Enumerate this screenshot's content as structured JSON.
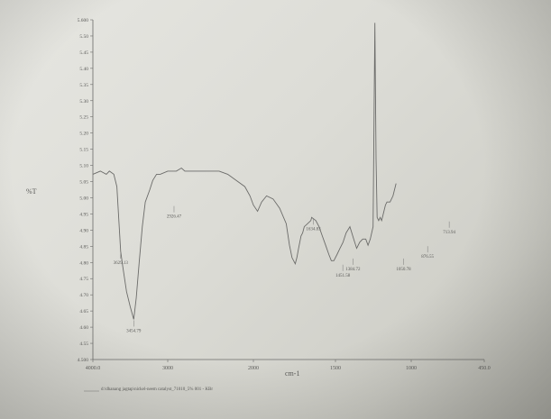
{
  "chart_data": {
    "type": "line",
    "ylabel": "%T",
    "xlabel": "cm-1",
    "xlim": [
      4000.0,
      450.0
    ],
    "ylim": [
      4.5,
      5.6
    ],
    "x_ticks": [
      "4000.0",
      "3000",
      "2000",
      "1500",
      "1000",
      "450.0"
    ],
    "y_ticks": [
      "4.500",
      "4.55",
      "4.60",
      "4.65",
      "4.70",
      "4.75",
      "4.80",
      "4.85",
      "4.90",
      "4.95",
      "5.00",
      "5.05",
      "5.10",
      "5.15",
      "5.20",
      "5.25",
      "5.30",
      "5.35",
      "5.40",
      "5.45",
      "5.50",
      "5.600"
    ],
    "series": [
      {
        "values": [
          [
            4000.0,
            5.1
          ],
          [
            3900,
            5.11
          ],
          [
            3820,
            5.1
          ],
          [
            3780,
            5.11
          ],
          [
            3720,
            5.1
          ],
          [
            3680,
            5.06
          ],
          [
            3629.13,
            4.85
          ],
          [
            3600,
            4.8
          ],
          [
            3550,
            4.72
          ],
          [
            3500,
            4.67
          ],
          [
            3454.79,
            4.63
          ],
          [
            3420,
            4.7
          ],
          [
            3380,
            4.82
          ],
          [
            3340,
            4.93
          ],
          [
            3300,
            5.01
          ],
          [
            3240,
            5.05
          ],
          [
            3200,
            5.08
          ],
          [
            3150,
            5.1
          ],
          [
            3100,
            5.1
          ],
          [
            3000,
            5.11
          ],
          [
            2900,
            5.11
          ],
          [
            2840,
            5.12
          ],
          [
            2800,
            5.11
          ],
          [
            2700,
            5.11
          ],
          [
            2600,
            5.11
          ],
          [
            2500,
            5.11
          ],
          [
            2400,
            5.11
          ],
          [
            2300,
            5.1
          ],
          [
            2200,
            5.08
          ],
          [
            2100,
            5.06
          ],
          [
            2040,
            5.03
          ],
          [
            2000,
            5.0
          ],
          [
            1975,
            4.98
          ],
          [
            1950,
            5.01
          ],
          [
            1920,
            5.03
          ],
          [
            1880,
            5.02
          ],
          [
            1840,
            4.99
          ],
          [
            1800,
            4.94
          ],
          [
            1780,
            4.87
          ],
          [
            1765,
            4.83
          ],
          [
            1745,
            4.81
          ],
          [
            1735,
            4.83
          ],
          [
            1725,
            4.86
          ],
          [
            1710,
            4.9
          ],
          [
            1700,
            4.91
          ],
          [
            1690,
            4.93
          ],
          [
            1670,
            4.94
          ],
          [
            1650,
            4.95
          ],
          [
            1645,
            4.96
          ],
          [
            1620,
            4.95
          ],
          [
            1600,
            4.93
          ],
          [
            1580,
            4.9
          ],
          [
            1560,
            4.87
          ],
          [
            1540,
            4.84
          ],
          [
            1525,
            4.82
          ],
          [
            1510,
            4.82
          ],
          [
            1490,
            4.84
          ],
          [
            1470,
            4.86
          ],
          [
            1450,
            4.88
          ],
          [
            1430,
            4.91
          ],
          [
            1405,
            4.93
          ],
          [
            1380,
            4.89
          ],
          [
            1360,
            4.86
          ],
          [
            1340,
            4.88
          ],
          [
            1320,
            4.89
          ],
          [
            1300,
            4.89
          ],
          [
            1285,
            4.87
          ],
          [
            1270,
            4.89
          ],
          [
            1252,
            4.93
          ],
          [
            1240,
            5.59
          ],
          [
            1232,
            5.15
          ],
          [
            1225,
            4.96
          ],
          [
            1215,
            4.95
          ],
          [
            1205,
            4.96
          ],
          [
            1195,
            4.95
          ],
          [
            1185,
            4.97
          ],
          [
            1170,
            5.0
          ],
          [
            1160,
            5.01
          ],
          [
            1140,
            5.01
          ],
          [
            1120,
            5.03
          ],
          [
            1100,
            5.07
          ]
        ]
      }
    ],
    "annotations": [
      {
        "label": "3629.13",
        "x": 3629.13,
        "y": 4.85
      },
      {
        "label": "3454.79",
        "x": 3454.79,
        "y": 4.63
      },
      {
        "label": "2926.47",
        "x": 2926.47,
        "y": 5.0
      },
      {
        "label": "1634.83",
        "x": 1634.83,
        "y": 4.96
      },
      {
        "label": "1451.58",
        "x": 1451.58,
        "y": 4.81
      },
      {
        "label": "1384.72",
        "x": 1384.72,
        "y": 4.83
      },
      {
        "label": "1050.78",
        "x": 1050.78,
        "y": 4.83
      },
      {
        "label": "876.55",
        "x": 876.55,
        "y": 4.87
      },
      {
        "label": "713.94",
        "x": 713.94,
        "y": 4.95
      }
    ],
    "footer": "d:\\dhanang jagtap\\nickel-neem catalyst_71010_5% 001 - KBr",
    "grid": false,
    "legend": "none"
  }
}
